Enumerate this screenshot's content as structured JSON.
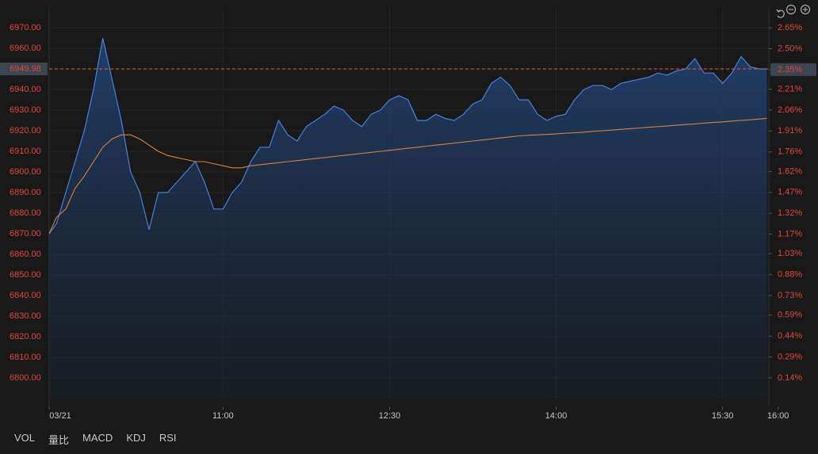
{
  "chart_data": {
    "type": "line",
    "x": [
      -4,
      0,
      5,
      10,
      15,
      20,
      25,
      30,
      35,
      40,
      45,
      50,
      55,
      60,
      65,
      70,
      75,
      80,
      85,
      90,
      95,
      100,
      105,
      110,
      115,
      120,
      125,
      130,
      135,
      140,
      145,
      150,
      155,
      160,
      165,
      170,
      175,
      180,
      185,
      190,
      195,
      200,
      205,
      210,
      215,
      220,
      225,
      230,
      235,
      240,
      245,
      250,
      255,
      260,
      265,
      270,
      275,
      280,
      285,
      290,
      295,
      300,
      305,
      310,
      315,
      320,
      325,
      330,
      335,
      340,
      345,
      350,
      355,
      360,
      365,
      370,
      375,
      380,
      384
    ],
    "series": [
      {
        "color": "#4a80d8",
        "values": [
          6870,
          6875,
          6890,
          6905,
          6920,
          6940,
          6965,
          6945,
          6925,
          6900,
          6890,
          6872,
          6890,
          6890,
          6895,
          6900,
          6905,
          6895,
          6882,
          6882,
          6890,
          6895,
          6905,
          6912,
          6912,
          6925,
          6918,
          6915,
          6922,
          6925,
          6928,
          6932,
          6930,
          6925,
          6922,
          6928,
          6930,
          6935,
          6937,
          6935,
          6925,
          6925,
          6928,
          6926,
          6925,
          6928,
          6933,
          6935,
          6943,
          6946,
          6942,
          6935,
          6935,
          6928,
          6925,
          6927,
          6928,
          6935,
          6940,
          6942,
          6942,
          6940,
          6943,
          6944,
          6945,
          6946,
          6948,
          6947,
          6949,
          6950,
          6955,
          6948,
          6948,
          6943,
          6948,
          6956,
          6951,
          6950,
          6950
        ]
      },
      {
        "color": "#d9803f",
        "values": [
          6870,
          6878,
          6882,
          6892,
          6898,
          6905,
          6912,
          6916,
          6918,
          6918,
          6916,
          6913,
          6910,
          6908,
          6907,
          6906,
          6905,
          6905,
          6904,
          6903,
          6902,
          6902,
          6903,
          6903.5,
          6904,
          6904.5,
          6905,
          6905.5,
          6906,
          6906.5,
          6907,
          6907.5,
          6908,
          6908.5,
          6909,
          6909.5,
          6910,
          6910.5,
          6911,
          6911.5,
          6912,
          6912.5,
          6913,
          6913.5,
          6914,
          6914.5,
          6915,
          6915.5,
          6916,
          6916.5,
          6917,
          6917.5,
          6917.8,
          6918,
          6918.2,
          6918.5,
          6918.8,
          6919,
          6919.3,
          6919.7,
          6920,
          6920.3,
          6920.7,
          6921,
          6921.3,
          6921.7,
          6922,
          6922.3,
          6922.7,
          6923,
          6923.3,
          6923.7,
          6924,
          6924.3,
          6924.7,
          6925,
          6925.3,
          6925.7,
          6926
        ]
      }
    ],
    "xlim": [
      -4,
      385
    ],
    "xticks": [
      {
        "value": -4,
        "label": "03/21"
      },
      {
        "value": 90,
        "label": "11:00"
      },
      {
        "value": 180,
        "label": "12:30"
      },
      {
        "value": 270,
        "label": "14:00"
      },
      {
        "value": 360,
        "label": "15:30"
      },
      {
        "value": 390,
        "label": "16:00"
      }
    ],
    "ylim": [
      6790,
      6980
    ],
    "yticks": [
      {
        "value": 6970,
        "label": "6970.00"
      },
      {
        "value": 6960,
        "label": "6960.00"
      },
      {
        "value": 6950,
        "label": "6950.00"
      },
      {
        "value": 6940,
        "label": "6940.00"
      },
      {
        "value": 6930,
        "label": "6930.00"
      },
      {
        "value": 6920,
        "label": "6920.00"
      },
      {
        "value": 6910,
        "label": "6910.00"
      },
      {
        "value": 6900,
        "label": "6900.00"
      },
      {
        "value": 6890,
        "label": "6890.00"
      },
      {
        "value": 6880,
        "label": "6880.00"
      },
      {
        "value": 6870,
        "label": "6870.00"
      },
      {
        "value": 6860,
        "label": "6860.00"
      },
      {
        "value": 6850,
        "label": "6850.00"
      },
      {
        "value": 6840,
        "label": "6840.00"
      },
      {
        "value": 6830,
        "label": "6830.00"
      },
      {
        "value": 6820,
        "label": "6820.00"
      },
      {
        "value": 6810,
        "label": "6810.00"
      },
      {
        "value": 6800,
        "label": "6800.00"
      }
    ],
    "y2lim": [
      -0.008,
      2.798
    ],
    "y2ticks": [
      {
        "value": 2.65,
        "label": "2.65%"
      },
      {
        "value": 2.5,
        "label": "2.50%"
      },
      {
        "value": 2.35,
        "label": "2.35%"
      },
      {
        "value": 2.21,
        "label": "2.21%"
      },
      {
        "value": 2.06,
        "label": "2.06%"
      },
      {
        "value": 1.91,
        "label": "1.91%"
      },
      {
        "value": 1.76,
        "label": "1.76%"
      },
      {
        "value": 1.62,
        "label": "1.62%"
      },
      {
        "value": 1.47,
        "label": "1.47%"
      },
      {
        "value": 1.32,
        "label": "1.32%"
      },
      {
        "value": 1.17,
        "label": "1.17%"
      },
      {
        "value": 1.03,
        "label": "1.03%"
      },
      {
        "value": 0.88,
        "label": "0.88%"
      },
      {
        "value": 0.73,
        "label": "0.73%"
      },
      {
        "value": 0.59,
        "label": "0.59%"
      },
      {
        "value": 0.44,
        "label": "0.44%"
      },
      {
        "value": 0.29,
        "label": "0.29%"
      },
      {
        "value": 0.14,
        "label": "0.14%"
      }
    ],
    "last_price": 6949.98,
    "last_change": {
      "value": 2.35,
      "label": "2.35%"
    },
    "grid": true,
    "tick_color": "#e0463f"
  },
  "indicator_tabs": [
    "VOL",
    "量比",
    "MACD",
    "KDJ",
    "RSI"
  ]
}
